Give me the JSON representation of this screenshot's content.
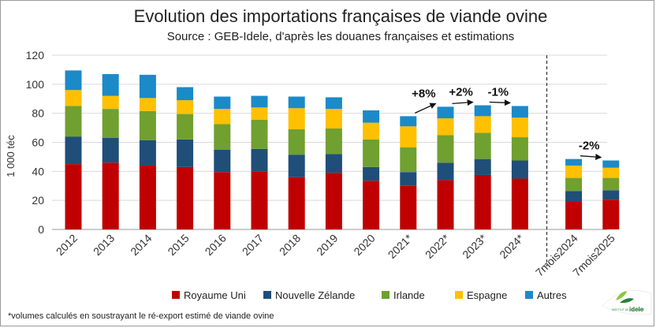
{
  "chart_data": {
    "type": "bar",
    "stacked": true,
    "title": "Evolution des importations françaises de viande ovine",
    "subtitle": "Source : GEB-Idele, d'après les douanes françaises et estimations",
    "ylabel": "1 000 téc",
    "ylim": [
      0,
      120
    ],
    "yticks": [
      0,
      20,
      40,
      60,
      80,
      100,
      120
    ],
    "grid": true,
    "legend_position": "bottom",
    "categories": [
      "2012",
      "2013",
      "2014",
      "2015",
      "2016",
      "2017",
      "2018",
      "2019",
      "2020",
      "2021*",
      "2022*",
      "2023*",
      "2024*",
      "7mois2024",
      "7mois2025"
    ],
    "series": [
      {
        "name": "Royaume Uni",
        "color": "#c00000",
        "values": [
          45,
          46,
          44,
          43,
          39.5,
          40,
          36,
          39,
          33.5,
          30,
          34,
          37.5,
          35,
          19,
          20.5
        ]
      },
      {
        "name": "Nouvelle Zélande",
        "color": "#1f4e79",
        "values": [
          19,
          17,
          17.5,
          19,
          15.5,
          15.5,
          15.5,
          13,
          9.5,
          9.5,
          12,
          11,
          12.5,
          7.5,
          6.5
        ]
      },
      {
        "name": "Irlande",
        "color": "#70a030",
        "values": [
          21,
          20,
          20,
          17.5,
          17.5,
          20,
          17.5,
          17.5,
          19,
          17,
          19,
          18,
          16,
          9,
          8.5
        ]
      },
      {
        "name": "Espagne",
        "color": "#ffc000",
        "values": [
          11,
          9,
          9,
          9.5,
          10.5,
          8.5,
          14.5,
          13.5,
          11.5,
          14.5,
          11.5,
          11.5,
          13.5,
          8.5,
          7
        ]
      },
      {
        "name": "Autres",
        "color": "#1b8ac9",
        "values": [
          13.5,
          15,
          16,
          9,
          8.5,
          8,
          8,
          8,
          8.5,
          7,
          8,
          7.5,
          8,
          4.5,
          5
        ]
      }
    ],
    "annotations": [
      {
        "text": "+8%",
        "from": "2021*",
        "to": "2022*"
      },
      {
        "text": "+2%",
        "from": "2022*",
        "to": "2023*"
      },
      {
        "text": "-1%",
        "from": "2023*",
        "to": "2024*"
      },
      {
        "text": "-2%",
        "from": "7mois2024",
        "to": "7mois2025"
      }
    ],
    "divider_after": "2024*"
  },
  "footnote": "*volumes calculés en soustrayant le ré-export estimé de viande ovine",
  "logo": {
    "text": "idele",
    "small_text": "INSTITUT DE L'ÉLEVAGE",
    "colors": [
      "#2a7f3a",
      "#8cc63f"
    ]
  }
}
